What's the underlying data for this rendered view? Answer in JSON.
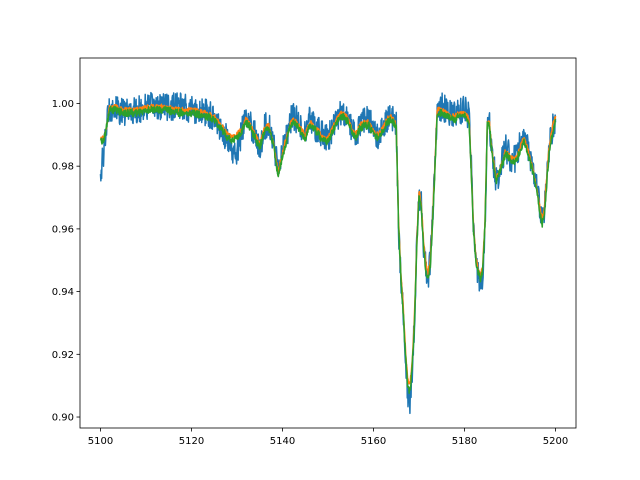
{
  "chart_data": {
    "type": "line",
    "title": "",
    "xlabel": "",
    "ylabel": "",
    "xlim": [
      5095.5,
      5204.5
    ],
    "ylim": [
      0.8965,
      1.0145
    ],
    "x_ticks": [
      5100,
      5120,
      5140,
      5160,
      5180,
      5200
    ],
    "x_tick_labels": [
      "5100",
      "5120",
      "5140",
      "5160",
      "5180",
      "5200"
    ],
    "y_ticks": [
      0.9,
      0.92,
      0.94,
      0.96,
      0.98,
      1.0
    ],
    "y_tick_labels": [
      "0.90",
      "0.92",
      "0.94",
      "0.96",
      "0.98",
      "1.00"
    ],
    "grid": false,
    "legend": "none",
    "series": [
      {
        "color": "#1f77b4",
        "noise": 0.0045,
        "x": [
          5100.0,
          5100.5,
          5101.0,
          5101.5,
          5102.0,
          5103.0,
          5105.0,
          5108.0,
          5111.0,
          5114.0,
          5117.0,
          5120.0,
          5123.0,
          5125.0,
          5127.0,
          5128.0,
          5129.0,
          5130.0,
          5131.0,
          5132.0,
          5133.0,
          5134.0,
          5135.0,
          5136.0,
          5137.0,
          5138.0,
          5139.0,
          5140.0,
          5141.0,
          5142.0,
          5143.0,
          5144.0,
          5145.0,
          5146.0,
          5147.0,
          5148.0,
          5149.0,
          5150.0,
          5151.0,
          5152.0,
          5153.0,
          5154.0,
          5155.0,
          5156.0,
          5157.0,
          5158.0,
          5159.0,
          5160.0,
          5161.0,
          5162.0,
          5163.0,
          5164.0,
          5165.0,
          5165.5,
          5166.0,
          5166.5,
          5167.0,
          5167.5,
          5168.0,
          5168.5,
          5169.0,
          5169.5,
          5170.0,
          5170.5,
          5171.0,
          5171.5,
          5172.0,
          5172.5,
          5173.0,
          5173.5,
          5174.0,
          5175.0,
          5176.0,
          5177.0,
          5178.0,
          5179.0,
          5180.0,
          5181.0,
          5181.5,
          5182.0,
          5182.5,
          5183.0,
          5183.5,
          5184.0,
          5184.5,
          5185.0,
          5185.5,
          5186.0,
          5187.0,
          5188.0,
          5189.0,
          5190.0,
          5191.0,
          5192.0,
          5193.0,
          5194.0,
          5195.0,
          5196.0,
          5197.0,
          5197.5,
          5198.0,
          5198.5,
          5199.0,
          5199.5,
          5200.0
        ],
        "y": [
          0.978,
          0.982,
          0.988,
          0.995,
          0.999,
          0.998,
          0.997,
          0.998,
          0.999,
          0.999,
          0.999,
          0.998,
          0.997,
          0.996,
          0.991,
          0.988,
          0.985,
          0.984,
          0.991,
          0.995,
          0.993,
          0.99,
          0.986,
          0.992,
          0.994,
          0.988,
          0.98,
          0.985,
          0.99,
          0.996,
          0.995,
          0.992,
          0.99,
          0.995,
          0.993,
          0.991,
          0.99,
          0.989,
          0.992,
          0.995,
          0.997,
          0.996,
          0.993,
          0.989,
          0.993,
          0.994,
          0.995,
          0.991,
          0.99,
          0.992,
          0.995,
          0.996,
          0.994,
          0.96,
          0.945,
          0.935,
          0.92,
          0.908,
          0.905,
          0.915,
          0.93,
          0.955,
          0.97,
          0.968,
          0.955,
          0.948,
          0.945,
          0.95,
          0.965,
          0.98,
          0.998,
          0.999,
          0.998,
          0.997,
          0.996,
          0.997,
          0.998,
          0.996,
          0.98,
          0.96,
          0.95,
          0.946,
          0.942,
          0.945,
          0.96,
          0.992,
          0.993,
          0.985,
          0.975,
          0.98,
          0.986,
          0.983,
          0.982,
          0.986,
          0.99,
          0.985,
          0.978,
          0.972,
          0.962,
          0.965,
          0.975,
          0.985,
          0.99,
          0.993,
          0.994
        ]
      },
      {
        "color": "#ff7f0e",
        "noise": 0.0008,
        "x": [
          5100.0,
          5100.5,
          5101.0,
          5101.5,
          5102.0,
          5103.0,
          5105.0,
          5108.0,
          5111.0,
          5114.0,
          5117.0,
          5120.0,
          5123.0,
          5125.0,
          5127.0,
          5128.0,
          5129.0,
          5130.0,
          5131.0,
          5132.0,
          5133.0,
          5134.0,
          5135.0,
          5136.0,
          5137.0,
          5138.0,
          5139.0,
          5140.0,
          5141.0,
          5142.0,
          5143.0,
          5144.0,
          5145.0,
          5146.0,
          5147.0,
          5148.0,
          5149.0,
          5150.0,
          5151.0,
          5152.0,
          5153.0,
          5154.0,
          5155.0,
          5156.0,
          5157.0,
          5158.0,
          5159.0,
          5160.0,
          5161.0,
          5162.0,
          5163.0,
          5164.0,
          5165.0,
          5165.5,
          5166.0,
          5166.5,
          5167.0,
          5167.5,
          5168.0,
          5168.5,
          5169.0,
          5169.5,
          5170.0,
          5170.5,
          5171.0,
          5171.5,
          5172.0,
          5172.5,
          5173.0,
          5173.5,
          5174.0,
          5175.0,
          5176.0,
          5177.0,
          5178.0,
          5179.0,
          5180.0,
          5181.0,
          5181.5,
          5182.0,
          5182.5,
          5183.0,
          5183.5,
          5184.0,
          5184.5,
          5185.0,
          5185.5,
          5186.0,
          5187.0,
          5188.0,
          5189.0,
          5190.0,
          5191.0,
          5192.0,
          5193.0,
          5194.0,
          5195.0,
          5196.0,
          5197.0,
          5197.5,
          5198.0,
          5198.5,
          5199.0,
          5199.5,
          5200.0
        ],
        "y": [
          0.989,
          0.989,
          0.99,
          0.994,
          0.999,
          0.999,
          0.998,
          0.998,
          0.999,
          0.999,
          0.998,
          0.998,
          0.997,
          0.996,
          0.992,
          0.99,
          0.989,
          0.99,
          0.992,
          0.995,
          0.993,
          0.99,
          0.987,
          0.992,
          0.993,
          0.988,
          0.978,
          0.984,
          0.99,
          0.995,
          0.994,
          0.992,
          0.99,
          0.994,
          0.993,
          0.991,
          0.989,
          0.989,
          0.992,
          0.995,
          0.997,
          0.996,
          0.993,
          0.99,
          0.993,
          0.994,
          0.994,
          0.991,
          0.99,
          0.992,
          0.995,
          0.996,
          0.993,
          0.962,
          0.946,
          0.936,
          0.922,
          0.912,
          0.91,
          0.918,
          0.932,
          0.955,
          0.972,
          0.968,
          0.956,
          0.949,
          0.946,
          0.95,
          0.964,
          0.98,
          0.998,
          0.998,
          0.997,
          0.996,
          0.996,
          0.997,
          0.997,
          0.995,
          0.978,
          0.96,
          0.951,
          0.947,
          0.945,
          0.948,
          0.962,
          0.994,
          0.994,
          0.985,
          0.976,
          0.98,
          0.985,
          0.983,
          0.982,
          0.985,
          0.989,
          0.985,
          0.979,
          0.972,
          0.963,
          0.966,
          0.975,
          0.985,
          0.99,
          0.994,
          0.996
        ]
      },
      {
        "color": "#2ca02c",
        "noise": 0.0012,
        "x": [
          5100.0,
          5100.5,
          5101.0,
          5101.5,
          5102.0,
          5103.0,
          5105.0,
          5108.0,
          5111.0,
          5114.0,
          5117.0,
          5120.0,
          5123.0,
          5125.0,
          5127.0,
          5128.0,
          5129.0,
          5130.0,
          5131.0,
          5132.0,
          5133.0,
          5134.0,
          5135.0,
          5136.0,
          5137.0,
          5138.0,
          5139.0,
          5140.0,
          5141.0,
          5142.0,
          5143.0,
          5144.0,
          5145.0,
          5146.0,
          5147.0,
          5148.0,
          5149.0,
          5150.0,
          5151.0,
          5152.0,
          5153.0,
          5154.0,
          5155.0,
          5156.0,
          5157.0,
          5158.0,
          5159.0,
          5160.0,
          5161.0,
          5162.0,
          5163.0,
          5164.0,
          5165.0,
          5165.5,
          5166.0,
          5166.5,
          5167.0,
          5167.5,
          5168.0,
          5168.5,
          5169.0,
          5169.5,
          5170.0,
          5170.5,
          5171.0,
          5171.5,
          5172.0,
          5172.5,
          5173.0,
          5173.5,
          5174.0,
          5175.0,
          5176.0,
          5177.0,
          5178.0,
          5179.0,
          5180.0,
          5181.0,
          5181.5,
          5182.0,
          5182.5,
          5183.0,
          5183.5,
          5184.0,
          5184.5,
          5185.0,
          5185.5,
          5186.0,
          5187.0,
          5188.0,
          5189.0,
          5190.0,
          5191.0,
          5192.0,
          5193.0,
          5194.0,
          5195.0,
          5196.0,
          5197.0,
          5197.5,
          5198.0,
          5198.5,
          5199.0,
          5199.5,
          5200.0
        ],
        "y": [
          0.988,
          0.988,
          0.99,
          0.994,
          0.998,
          0.998,
          0.997,
          0.997,
          0.998,
          0.998,
          0.997,
          0.997,
          0.996,
          0.995,
          0.991,
          0.989,
          0.988,
          0.989,
          0.991,
          0.994,
          0.992,
          0.989,
          0.986,
          0.991,
          0.992,
          0.987,
          0.977,
          0.983,
          0.989,
          0.994,
          0.993,
          0.991,
          0.989,
          0.993,
          0.992,
          0.99,
          0.988,
          0.988,
          0.991,
          0.994,
          0.996,
          0.995,
          0.992,
          0.989,
          0.992,
          0.993,
          0.993,
          0.99,
          0.989,
          0.991,
          0.994,
          0.995,
          0.992,
          0.961,
          0.945,
          0.934,
          0.92,
          0.91,
          0.908,
          0.916,
          0.93,
          0.953,
          0.97,
          0.966,
          0.954,
          0.947,
          0.944,
          0.948,
          0.962,
          0.978,
          0.997,
          0.997,
          0.996,
          0.995,
          0.995,
          0.996,
          0.996,
          0.994,
          0.977,
          0.959,
          0.95,
          0.946,
          0.944,
          0.947,
          0.961,
          0.993,
          0.993,
          0.984,
          0.975,
          0.979,
          0.984,
          0.982,
          0.981,
          0.984,
          0.988,
          0.984,
          0.978,
          0.971,
          0.961,
          0.964,
          0.973,
          0.983,
          0.988,
          0.992,
          0.995
        ]
      }
    ]
  }
}
